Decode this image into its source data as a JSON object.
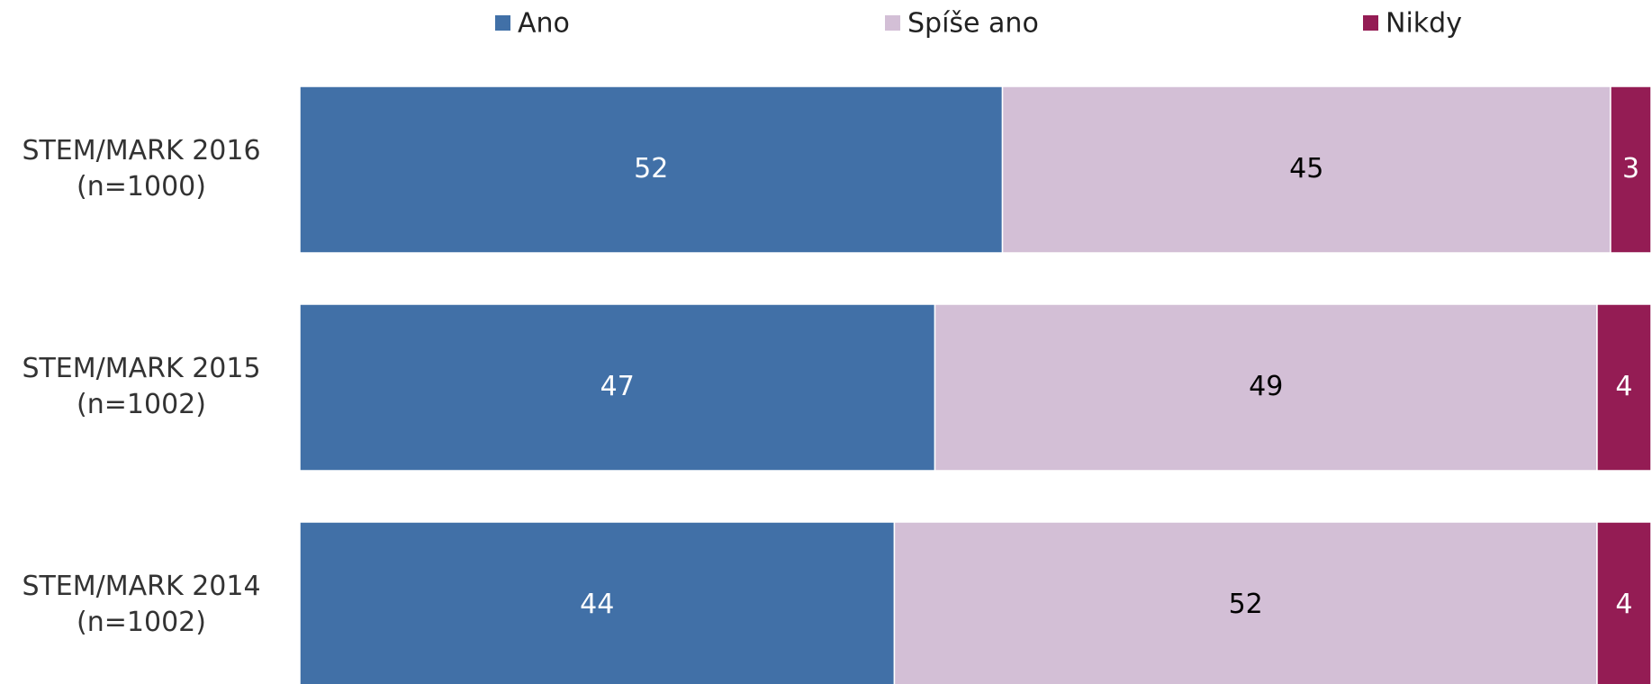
{
  "chart_data": {
    "type": "stacked_barh",
    "categories": [
      [
        "STEM/MARK 2016",
        "(n=1000)"
      ],
      [
        "STEM/MARK 2015",
        "(n=1002)"
      ],
      [
        "STEM/MARK 2014",
        "(n=1002)"
      ]
    ],
    "series": [
      {
        "name": "Ano",
        "color": "#4170a7",
        "label_color": "#ffffff",
        "values": [
          52,
          47,
          44
        ]
      },
      {
        "name": "Spíše ano",
        "color": "#d3bfd6",
        "label_color": "#000000",
        "values": [
          45,
          49,
          52
        ]
      },
      {
        "name": "Nikdy",
        "color": "#941c54",
        "label_color": "#ffffff",
        "values": [
          3,
          4,
          4
        ]
      }
    ],
    "xlim": [
      0,
      100
    ],
    "legend": "top"
  }
}
